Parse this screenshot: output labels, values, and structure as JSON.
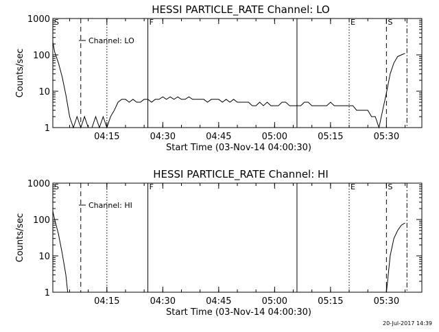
{
  "chart_data": [
    {
      "type": "line",
      "title": "HESSI PARTICLE_RATE Channel: LO",
      "xlabel": "Start Time (03-Nov-14 04:00:30)",
      "ylabel": "Counts/sec",
      "yscale": "log",
      "ylim": [
        1,
        1000
      ],
      "xlim": [
        "04:00:30",
        "05:39:30"
      ],
      "x_unit": "time (HH:MM)",
      "xticks": [
        "04:15",
        "04:30",
        "04:45",
        "05:00",
        "05:15",
        "05:30"
      ],
      "yticks": [
        "1",
        "10",
        "100",
        "1000"
      ],
      "legend": {
        "position": "top-left",
        "entries": [
          "Channel: LO"
        ]
      },
      "series": [
        {
          "name": "Channel: LO",
          "x": [
            "04:00:30",
            "04:01:00",
            "04:02:00",
            "04:03:00",
            "04:04:00",
            "04:05:00",
            "04:06:00",
            "04:07:00",
            "04:08:00",
            "04:09:00",
            "04:10:00",
            "04:11:00",
            "04:12:00",
            "04:13:00",
            "04:14:00",
            "04:15:00",
            "04:16:00",
            "04:17:00",
            "04:18:00",
            "04:19:00",
            "04:20:00",
            "04:21:00",
            "04:22:00",
            "04:23:00",
            "04:24:00",
            "04:25:00",
            "04:26:00",
            "04:27:00",
            "04:28:00",
            "04:29:00",
            "04:30:00",
            "04:31:00",
            "04:32:00",
            "04:33:00",
            "04:34:00",
            "04:35:00",
            "04:36:00",
            "04:37:00",
            "04:38:00",
            "04:39:00",
            "04:40:00",
            "04:41:00",
            "04:42:00",
            "04:43:00",
            "04:44:00",
            "04:45:00",
            "04:46:00",
            "04:47:00",
            "04:48:00",
            "04:49:00",
            "04:50:00",
            "04:51:00",
            "04:52:00",
            "04:53:00",
            "04:54:00",
            "04:55:00",
            "04:56:00",
            "04:57:00",
            "04:58:00",
            "04:59:00",
            "05:00:00",
            "05:01:00",
            "05:02:00",
            "05:03:00",
            "05:04:00",
            "05:05:00",
            "05:06:00",
            "05:07:00",
            "05:08:00",
            "05:09:00",
            "05:10:00",
            "05:11:00",
            "05:12:00",
            "05:13:00",
            "05:14:00",
            "05:15:00",
            "05:16:00",
            "05:17:00",
            "05:18:00",
            "05:19:00",
            "05:20:00",
            "05:21:00",
            "05:22:00",
            "05:23:00",
            "05:24:00",
            "05:25:00",
            "05:26:00",
            "05:27:00",
            "05:28:00",
            "05:29:00",
            "05:30:00",
            "05:31:00",
            "05:32:00",
            "05:33:00",
            "05:34:00",
            "05:35:00"
          ],
          "values": [
            230,
            120,
            60,
            25,
            8,
            2,
            1,
            2,
            1,
            2,
            1,
            1,
            2,
            1,
            2,
            1,
            2,
            3,
            5,
            6,
            6,
            5,
            6,
            5,
            5,
            6,
            6,
            5,
            6,
            6,
            7,
            6,
            7,
            6,
            7,
            6,
            6,
            7,
            6,
            6,
            6,
            6,
            5,
            6,
            6,
            6,
            5,
            6,
            5,
            6,
            5,
            5,
            5,
            5,
            4,
            4,
            5,
            4,
            5,
            4,
            4,
            4,
            5,
            5,
            4,
            4,
            4,
            4,
            5,
            5,
            4,
            4,
            4,
            4,
            4,
            5,
            4,
            4,
            4,
            4,
            4,
            4,
            3,
            3,
            3,
            3,
            2,
            2,
            1,
            3,
            9,
            30,
            60,
            90,
            100,
            110
          ]
        }
      ],
      "markers": [
        {
          "label": "S",
          "time": "04:00:30",
          "style": "solid"
        },
        {
          "label": "",
          "time": "04:08:00",
          "style": "dashed"
        },
        {
          "label": "",
          "time": "04:15:00",
          "style": "dotted"
        },
        {
          "label": "F",
          "time": "04:26:00",
          "style": "solid"
        },
        {
          "label": "",
          "time": "05:06:00",
          "style": "solid"
        },
        {
          "label": "E",
          "time": "05:20:00",
          "style": "dotted"
        },
        {
          "label": "S",
          "time": "05:30:00",
          "style": "dashed"
        },
        {
          "label": "",
          "time": "05:35:30",
          "style": "dashdot"
        }
      ]
    },
    {
      "type": "line",
      "title": "HESSI PARTICLE_RATE Channel: HI",
      "xlabel": "Start Time (03-Nov-14 04:00:30)",
      "ylabel": "Counts/sec",
      "yscale": "log",
      "ylim": [
        1,
        1000
      ],
      "xlim": [
        "04:00:30",
        "05:39:30"
      ],
      "x_unit": "time (HH:MM)",
      "xticks": [
        "04:15",
        "04:30",
        "04:45",
        "05:00",
        "05:15",
        "05:30"
      ],
      "yticks": [
        "1",
        "10",
        "100",
        "1000"
      ],
      "legend": {
        "position": "top-left",
        "entries": [
          "Channel: HI"
        ]
      },
      "series": [
        {
          "name": "Channel: HI",
          "x": [
            "04:00:30",
            "04:01:00",
            "04:02:00",
            "04:03:00",
            "04:04:00",
            "04:04:30",
            "05:30:00",
            "05:31:00",
            "05:32:00",
            "05:33:00",
            "05:34:00",
            "05:35:00"
          ],
          "values": [
            170,
            100,
            40,
            12,
            3,
            1,
            1,
            10,
            30,
            50,
            70,
            80
          ]
        }
      ],
      "markers": [
        {
          "label": "S",
          "time": "04:00:30",
          "style": "solid"
        },
        {
          "label": "",
          "time": "04:08:00",
          "style": "dashed"
        },
        {
          "label": "",
          "time": "04:15:00",
          "style": "dotted"
        },
        {
          "label": "F",
          "time": "04:26:00",
          "style": "solid"
        },
        {
          "label": "",
          "time": "05:06:00",
          "style": "solid"
        },
        {
          "label": "E",
          "time": "05:20:00",
          "style": "dotted"
        },
        {
          "label": "S",
          "time": "05:30:00",
          "style": "dashed"
        },
        {
          "label": "",
          "time": "05:35:30",
          "style": "dashdot"
        }
      ]
    }
  ],
  "footer": {
    "timestamp": "20-Jul-2017 14:39"
  }
}
